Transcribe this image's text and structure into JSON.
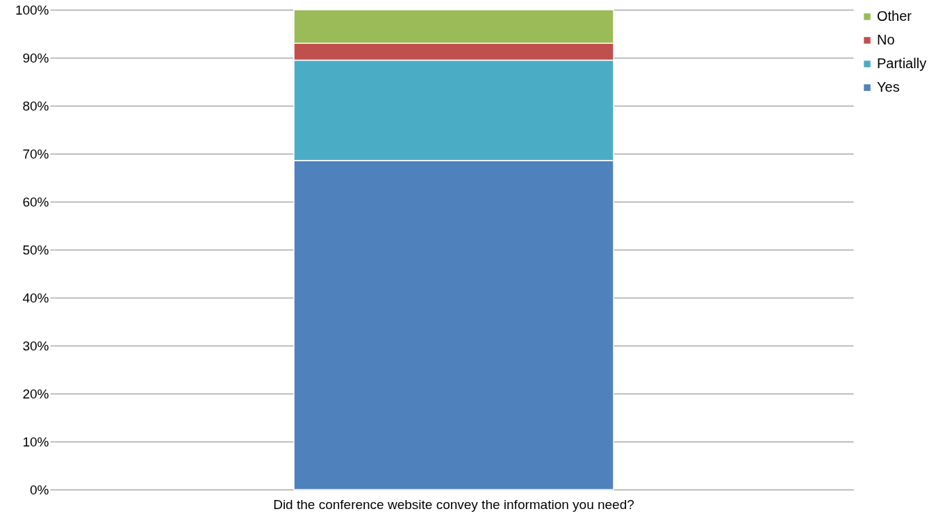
{
  "chart_data": {
    "type": "bar",
    "stacked": true,
    "categories": [
      "Did the conference website convey the information you need?"
    ],
    "series": [
      {
        "name": "Yes",
        "color": "#4f81bd",
        "values": [
          68.6
        ]
      },
      {
        "name": "Partially",
        "color": "#4bacc6",
        "values": [
          20.9
        ]
      },
      {
        "name": "No",
        "color": "#c0504d",
        "values": [
          3.5
        ]
      },
      {
        "name": "Other",
        "color": "#9bbb59",
        "values": [
          7.0
        ]
      }
    ],
    "ylim": [
      0,
      100
    ],
    "yticks": [
      {
        "value": 0,
        "label": "0%"
      },
      {
        "value": 10,
        "label": "10%"
      },
      {
        "value": 20,
        "label": "20%"
      },
      {
        "value": 30,
        "label": "30%"
      },
      {
        "value": 40,
        "label": "40%"
      },
      {
        "value": 50,
        "label": "50%"
      },
      {
        "value": 60,
        "label": "60%"
      },
      {
        "value": 70,
        "label": "70%"
      },
      {
        "value": 80,
        "label": "80%"
      },
      {
        "value": 90,
        "label": "90%"
      },
      {
        "value": 100,
        "label": "100%"
      }
    ],
    "grid": "y",
    "legend": "right"
  }
}
